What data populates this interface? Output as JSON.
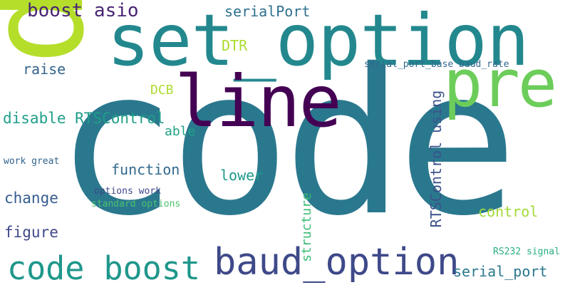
{
  "words": [
    {
      "text": "code",
      "color": "#2a788e",
      "rotation": 0
    },
    {
      "text": "p",
      "color": "#b5de2b",
      "rotation": 90
    },
    {
      "text": "set_option",
      "color": "#23888e",
      "rotation": 0
    },
    {
      "text": "line",
      "color": "#440154",
      "rotation": 0
    },
    {
      "text": "pre",
      "color": "#6ccd5a",
      "rotation": 0
    },
    {
      "text": "baud_option",
      "color": "#3e4989",
      "rotation": 0
    },
    {
      "text": "code boost",
      "color": "#1f978b",
      "rotation": 0
    },
    {
      "text": "boost asio",
      "color": "#482475",
      "rotation": 0
    },
    {
      "text": "serialPort",
      "color": "#2d708e",
      "rotation": 0
    },
    {
      "text": "DTR",
      "color": "#addc30",
      "rotation": 0
    },
    {
      "text": "raise",
      "color": "#33638d",
      "rotation": 0
    },
    {
      "text": "serial_port_base baud_rate",
      "color": "#31688e",
      "rotation": 0
    },
    {
      "text": "DCB",
      "color": "#addc30",
      "rotation": 0
    },
    {
      "text": "RTSControl using",
      "color": "#3b528b",
      "rotation": 270
    },
    {
      "text": "disable RTSControl",
      "color": "#1f9e89",
      "rotation": 0
    },
    {
      "text": "able",
      "color": "#20a386",
      "rotation": 0
    },
    {
      "text": "work great",
      "color": "#33638d",
      "rotation": 0
    },
    {
      "text": "function",
      "color": "#31688e",
      "rotation": 0
    },
    {
      "text": "lower",
      "color": "#1f9a8a",
      "rotation": 0
    },
    {
      "text": "structure",
      "color": "#3bbb75",
      "rotation": 270
    },
    {
      "text": "change",
      "color": "#365c8d",
      "rotation": 0
    },
    {
      "text": "options work",
      "color": "#3e4989",
      "rotation": 0
    },
    {
      "text": "standard options",
      "color": "#4ac16d",
      "rotation": 0
    },
    {
      "text": "control",
      "color": "#a2da37",
      "rotation": 0
    },
    {
      "text": "figure",
      "color": "#3e4989",
      "rotation": 0
    },
    {
      "text": "RS232 signal",
      "color": "#29af7f",
      "rotation": 0
    },
    {
      "text": "serial_port",
      "color": "#2a788e",
      "rotation": 0
    }
  ]
}
